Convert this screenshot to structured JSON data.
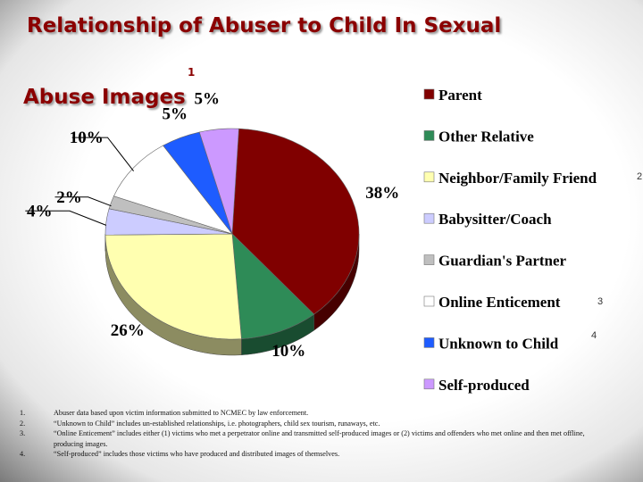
{
  "title": {
    "line1": "Relationship of Abuser to Child In Sexual",
    "line2": "Abuse Images",
    "sup": "1"
  },
  "markers": [
    "2",
    "3",
    "4"
  ],
  "chart_data": {
    "type": "pie",
    "categories": [
      "Parent",
      "Other Relative",
      "Neighbor/Family Friend",
      "Babysitter/Coach",
      "Guardian's Partner",
      "Online Enticement",
      "Unknown to Child",
      "Self-produced"
    ],
    "values": [
      38,
      10,
      26,
      4,
      2,
      10,
      5,
      5
    ],
    "labels": [
      "38%",
      "10%",
      "26%",
      "4%",
      "2%",
      "10%",
      "5%",
      "5%"
    ],
    "colors": [
      "#800000",
      "#2e8b57",
      "#ffffb0",
      "#ccccff",
      "#bfbfbf",
      "#ffffff",
      "#1e5cff",
      "#cc99ff"
    ],
    "legend_position": "right"
  },
  "notes": [
    {
      "num": "1.",
      "text": "Abuser data based upon victim information submitted to NCMEC by law enforcement."
    },
    {
      "num": "2.",
      "text": "“Unknown to Child” includes un-established relationships, i.e. photographers, child sex tourism, runaways, etc."
    },
    {
      "num": "3.",
      "text": "“Online Enticement” includes either (1) victims who met a perpetrator online and transmitted self-produced images or (2) victims and offenders who met online and then met offline, producing images."
    },
    {
      "num": "4.",
      "text": "“Self-produced” includes those victims who have produced and distributed images of themselves."
    }
  ]
}
